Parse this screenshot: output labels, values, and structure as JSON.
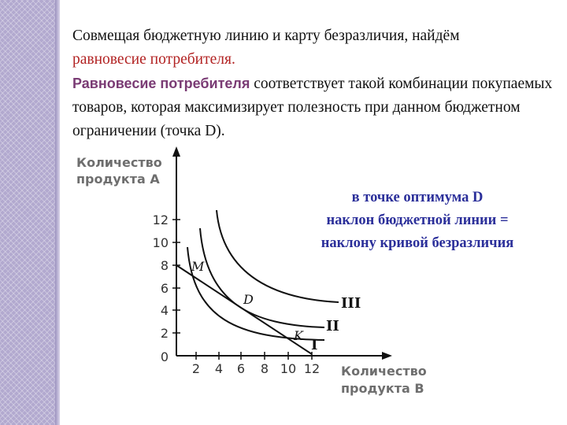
{
  "text": {
    "line1": "Совмещая бюджетную линию и карту безразличия, найдём",
    "line2_red": "равновесие потребителя",
    "line2_end": ".",
    "para2_purple": "Равновесие потребителя",
    "para2_rest": " соответствует такой комбинации покупаемых товаров, которая максимизирует полезность при данном бюджетном ограничении (точка D)."
  },
  "note": {
    "line1": "в точке оптимума D",
    "line2": "наклон бюджетной линии =",
    "line3": "наклону кривой безразличия"
  },
  "chart": {
    "y_title_1": "Количество",
    "y_title_2": "продукта А",
    "x_title_1": "Количество",
    "x_title_2": "продукта В",
    "origin_label": "0",
    "y_ticks": [
      "2",
      "4",
      "6",
      "8",
      "10",
      "12"
    ],
    "x_ticks": [
      "2",
      "4",
      "6",
      "8",
      "10",
      "12"
    ],
    "point_m": "M",
    "point_d": "D",
    "point_k": "K",
    "curve_i": "I",
    "curve_ii": "II",
    "curve_iii": "III"
  }
}
